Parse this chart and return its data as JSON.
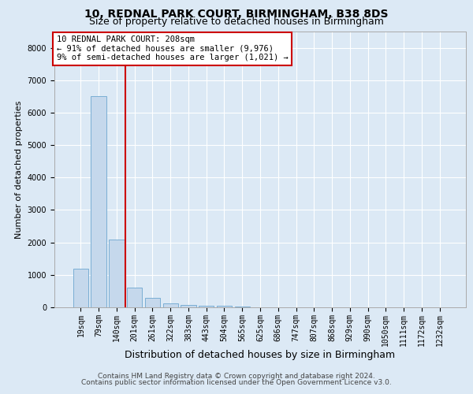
{
  "title1": "10, REDNAL PARK COURT, BIRMINGHAM, B38 8DS",
  "title2": "Size of property relative to detached houses in Birmingham",
  "xlabel": "Distribution of detached houses by size in Birmingham",
  "ylabel": "Number of detached properties",
  "footer1": "Contains HM Land Registry data © Crown copyright and database right 2024.",
  "footer2": "Contains public sector information licensed under the Open Government Licence v3.0.",
  "annotation_title": "10 REDNAL PARK COURT: 208sqm",
  "annotation_line1": "← 91% of detached houses are smaller (9,976)",
  "annotation_line2": "9% of semi-detached houses are larger (1,021) →",
  "bar_labels": [
    "19sqm",
    "79sqm",
    "140sqm",
    "201sqm",
    "261sqm",
    "322sqm",
    "383sqm",
    "443sqm",
    "504sqm",
    "565sqm",
    "625sqm",
    "686sqm",
    "747sqm",
    "807sqm",
    "868sqm",
    "929sqm",
    "990sqm",
    "1050sqm",
    "1111sqm",
    "1172sqm",
    "1232sqm"
  ],
  "bar_values": [
    1200,
    6500,
    2100,
    600,
    280,
    130,
    80,
    50,
    50,
    30,
    0,
    0,
    0,
    0,
    0,
    0,
    0,
    0,
    0,
    0,
    0
  ],
  "bar_color": "#c5d8ec",
  "bar_edge_color": "#7aaed4",
  "vline_x_index": 2.5,
  "vline_color": "#cc0000",
  "ylim": [
    0,
    8500
  ],
  "yticks": [
    0,
    1000,
    2000,
    3000,
    4000,
    5000,
    6000,
    7000,
    8000
  ],
  "background_color": "#dce9f5",
  "plot_bg_color": "#dce9f5",
  "grid_color": "#ffffff",
  "annotation_box_color": "#ffffff",
  "annotation_box_edge": "#cc0000",
  "title_fontsize": 10,
  "subtitle_fontsize": 9,
  "xlabel_fontsize": 9,
  "ylabel_fontsize": 8,
  "tick_fontsize": 7,
  "annotation_fontsize": 7.5,
  "footer_fontsize": 6.5
}
